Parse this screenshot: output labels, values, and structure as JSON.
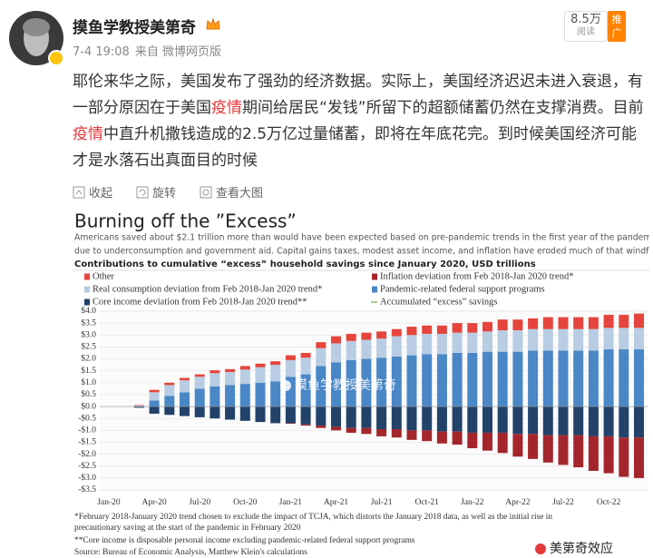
{
  "post": {
    "author": "摸鱼学教授美第奇",
    "time": "7-4 19:08",
    "source": "来自 微博网页版",
    "reads": "8.5万",
    "reads_label": "阅读",
    "promote": "推广",
    "text": [
      "耶伦来华之际，美国发布了强劲的经济数据。实际上，美国经济迟迟未进入衰退，有一部分原因在于美国",
      "疫情",
      "期间给居民“发钱”所留下的超额储蓄仍然在支撑消费。目前",
      "疫情",
      "中直升机撒钱造成的2.5万亿过量储蓄，即将在年底花完。到时候美国经济可能才是水落石出真面目的时候"
    ],
    "actions": [
      "收起",
      "旋转",
      "查看大图"
    ]
  },
  "chart_data": {
    "type": "bar",
    "stacked": true,
    "grid": true,
    "title": "Burning off the ”Excess”",
    "subtitle": [
      "Americans saved about $2.1 trillion more than would have been expected based on pre-pandemic trends in the first year of the pandemic",
      "due to underconsumption and government aid. Capital gains taxes, modest asset income, and inflation have eroded much of that windfall."
    ],
    "heading": "Contributions to cumulative “excess” household savings since January 2020, USD trillions",
    "categories": [
      "Jan-20",
      null,
      null,
      "Apr-20",
      null,
      null,
      "Jul-20",
      null,
      null,
      "Oct-20",
      null,
      null,
      "Jan-21",
      null,
      null,
      "Apr-21",
      null,
      null,
      "Jul-21",
      null,
      null,
      "Oct-21",
      null,
      null,
      "Jan-22",
      null,
      null,
      "Apr-22",
      null,
      null,
      "Jul-22",
      null,
      null,
      "Oct-22",
      null,
      null
    ],
    "series": [
      {
        "name": "Other",
        "color": "#e5453d",
        "values": [
          null,
          null,
          0.02,
          0.1,
          0.1,
          0.1,
          0.1,
          0.12,
          0.12,
          0.15,
          0.15,
          0.15,
          0.2,
          0.2,
          0.25,
          0.3,
          0.3,
          0.3,
          0.3,
          0.3,
          0.35,
          0.35,
          0.35,
          0.4,
          0.4,
          0.4,
          0.45,
          0.45,
          0.45,
          0.5,
          0.5,
          0.5,
          0.5,
          0.55,
          0.55,
          0.6
        ]
      },
      {
        "name": "Inflation deviation from Feb 2018-Jan 2020 trend*",
        "color": "#a4262c",
        "values": [
          null,
          null,
          0,
          0,
          0,
          0,
          0,
          0,
          0,
          0,
          0,
          0,
          -0.02,
          -0.05,
          -0.1,
          -0.15,
          -0.2,
          -0.25,
          -0.3,
          -0.35,
          -0.4,
          -0.45,
          -0.5,
          -0.55,
          -0.65,
          -0.75,
          -0.85,
          -0.95,
          -1.05,
          -1.15,
          -1.25,
          -1.35,
          -1.45,
          -1.55,
          -1.65,
          -1.7
        ]
      },
      {
        "name": "Real consumption deviation from Feb 2018-Jan 2020 trend*",
        "color": "#b8cde3",
        "values": [
          null,
          null,
          0.05,
          0.35,
          0.45,
          0.5,
          0.5,
          0.55,
          0.55,
          0.6,
          0.65,
          0.7,
          0.7,
          0.7,
          0.75,
          0.8,
          0.8,
          0.8,
          0.8,
          0.85,
          0.85,
          0.85,
          0.85,
          0.85,
          0.85,
          0.85,
          0.9,
          0.9,
          0.9,
          0.9,
          0.9,
          0.9,
          0.9,
          0.9,
          0.9,
          0.9
        ]
      },
      {
        "name": "Pandemic-related federal support programs",
        "color": "#4a87c6",
        "values": [
          null,
          null,
          0,
          0.25,
          0.45,
          0.6,
          0.75,
          0.85,
          0.9,
          0.95,
          1.0,
          1.05,
          1.25,
          1.35,
          1.7,
          1.85,
          1.95,
          2.0,
          2.05,
          2.1,
          2.15,
          2.2,
          2.2,
          2.25,
          2.25,
          2.3,
          2.3,
          2.3,
          2.35,
          2.35,
          2.35,
          2.35,
          2.35,
          2.4,
          2.4,
          2.4
        ]
      },
      {
        "name": "Core income deviation from Feb 2018-Jan 2020 trend**",
        "color": "#22426a",
        "values": [
          null,
          null,
          -0.05,
          -0.3,
          -0.35,
          -0.4,
          -0.45,
          -0.5,
          -0.55,
          -0.6,
          -0.65,
          -0.7,
          -0.7,
          -0.75,
          -0.8,
          -0.85,
          -0.9,
          -0.9,
          -0.95,
          -0.95,
          -1.0,
          -1.0,
          -1.05,
          -1.05,
          -1.1,
          -1.1,
          -1.1,
          -1.15,
          -1.15,
          -1.2,
          -1.2,
          -1.2,
          -1.25,
          -1.25,
          -1.3,
          -1.3
        ]
      },
      {
        "name": "Accumulated “excess” savings",
        "type": "line",
        "color": "#8dbb6c",
        "values": [
          0,
          0,
          0.02,
          0.45,
          0.6,
          0.7,
          0.8,
          0.9,
          0.95,
          1.0,
          1.05,
          1.1,
          1.3,
          1.35,
          1.6,
          1.75,
          1.8,
          1.9,
          1.9,
          1.95,
          1.95,
          1.95,
          1.9,
          1.9,
          1.85,
          1.8,
          1.75,
          1.7,
          1.6,
          1.5,
          1.4,
          1.3,
          1.2,
          1.15,
          1.05,
          0.95
        ]
      }
    ],
    "ylim": [
      -3.5,
      4.0
    ],
    "yticks": [
      {
        "value": 4.0,
        "label": "$4.0"
      },
      {
        "value": 3.5,
        "label": "$3.5"
      },
      {
        "value": 3.0,
        "label": "$3.0"
      },
      {
        "value": 2.5,
        "label": "$2.5"
      },
      {
        "value": 2.0,
        "label": "$2.0"
      },
      {
        "value": 1.5,
        "label": "$1.5"
      },
      {
        "value": 1.0,
        "label": "$1.0"
      },
      {
        "value": 0.5,
        "label": "$0.5"
      },
      {
        "value": 0,
        "label": "$0.0"
      },
      {
        "value": -0.5,
        "label": "-$0.5"
      },
      {
        "value": -1.0,
        "label": "-$1.0"
      },
      {
        "value": -1.5,
        "label": "-$1.5"
      },
      {
        "value": -2.0,
        "label": "-$2.0"
      },
      {
        "value": -2.5,
        "label": "-$2.5"
      },
      {
        "value": -3.0,
        "label": "-$3.0"
      },
      {
        "value": -3.5,
        "label": "-$3.5"
      }
    ],
    "footnotes": [
      "*February 2018-January 2020 trend chosen to exclude the impact of TCJA, which distorts the January 2018 data, as well as the initial rise in",
      "precautionary saving at the start of the pandemic in February 2020",
      "**Core income is disposable personal income excluding pandemic-related federal support programs",
      "Source: Bureau of Economic Analysis, Matthew Klein's calculations"
    ],
    "watermarks": [
      "摸鱼学教授美第奇",
      "美第奇效应"
    ]
  }
}
